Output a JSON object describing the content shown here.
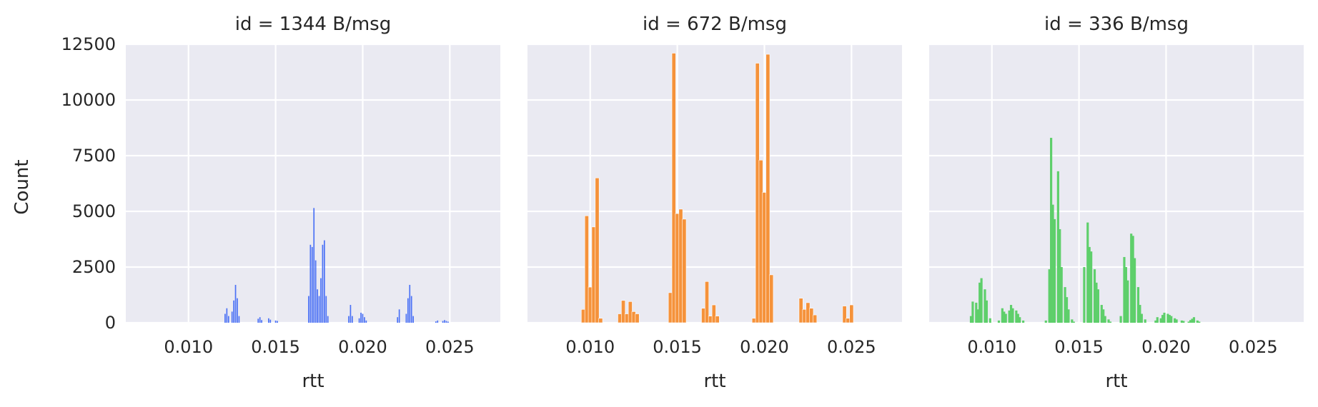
{
  "chart_data": [
    {
      "type": "bar",
      "title": "id = 1344 B/msg",
      "xlabel": "rtt",
      "ylabel": "Count",
      "color": "#4c72f5",
      "xlim": [
        0.0064,
        0.0279
      ],
      "ylim": [
        0,
        12500
      ],
      "xticks": [
        "0.010",
        "0.015",
        "0.020",
        "0.025"
      ],
      "yticks": [
        "0",
        "2500",
        "5000",
        "7500",
        "10000",
        "12500"
      ],
      "bin_width": 7e-05,
      "x": [
        0.0121,
        0.0122,
        0.0123,
        0.0125,
        0.0126,
        0.0127,
        0.0128,
        0.0129,
        0.014,
        0.0141,
        0.0142,
        0.0146,
        0.0147,
        0.015,
        0.0151,
        0.0169,
        0.017,
        0.0171,
        0.0172,
        0.0173,
        0.0174,
        0.0175,
        0.0176,
        0.0177,
        0.0178,
        0.0179,
        0.018,
        0.0192,
        0.0193,
        0.0194,
        0.0198,
        0.0199,
        0.02,
        0.0201,
        0.0202,
        0.022,
        0.0221,
        0.0225,
        0.0226,
        0.0227,
        0.0228,
        0.0229,
        0.0242,
        0.0243,
        0.0246,
        0.0247,
        0.0248,
        0.0249
      ],
      "values": [
        400,
        650,
        300,
        500,
        1000,
        1700,
        1100,
        300,
        180,
        250,
        120,
        200,
        140,
        100,
        80,
        1200,
        3500,
        3400,
        5150,
        2800,
        1500,
        1200,
        2000,
        3500,
        3700,
        1200,
        300,
        300,
        800,
        300,
        200,
        450,
        400,
        250,
        100,
        250,
        600,
        400,
        1100,
        1700,
        1200,
        300,
        60,
        100,
        80,
        120,
        80,
        50
      ]
    },
    {
      "type": "bar",
      "title": "id = 672 B/msg",
      "xlabel": "rtt",
      "ylabel": "",
      "color": "#f5923a",
      "xlim": [
        0.0064,
        0.0279
      ],
      "ylim": [
        0,
        12500
      ],
      "xticks": [
        "0.010",
        "0.015",
        "0.020",
        "0.025"
      ],
      "yticks": [],
      "bin_width": 0.00022,
      "x": [
        0.0096,
        0.0098,
        0.01,
        0.0102,
        0.0104,
        0.0106,
        0.0108,
        0.0117,
        0.0119,
        0.0121,
        0.0123,
        0.0125,
        0.0127,
        0.0146,
        0.0148,
        0.015,
        0.0152,
        0.0154,
        0.0156,
        0.0165,
        0.0167,
        0.0169,
        0.0171,
        0.0173,
        0.0175,
        0.0194,
        0.0196,
        0.0198,
        0.02,
        0.0202,
        0.0204,
        0.0206,
        0.0208,
        0.021,
        0.0215,
        0.0221,
        0.0223,
        0.0225,
        0.0227,
        0.0229,
        0.0246,
        0.0248,
        0.025,
        0.0252
      ],
      "values": [
        600,
        4800,
        1600,
        4300,
        6500,
        200,
        0,
        400,
        1000,
        400,
        950,
        500,
        400,
        1350,
        12100,
        4900,
        5100,
        4650,
        0,
        650,
        1850,
        300,
        800,
        300,
        0,
        200,
        11650,
        7300,
        5850,
        12050,
        2150,
        0,
        0,
        0,
        0,
        1100,
        600,
        900,
        650,
        350,
        750,
        200,
        800,
        0
      ]
    },
    {
      "type": "bar",
      "title": "id = 336 B/msg",
      "xlabel": "rtt",
      "ylabel": "",
      "color": "#5ecf6b",
      "xlim": [
        0.0064,
        0.0279
      ],
      "ylim": [
        0,
        12500
      ],
      "xticks": [
        "0.010",
        "0.015",
        "0.020",
        "0.025"
      ],
      "yticks": [],
      "bin_width": 0.00013,
      "x": [
        0.0088,
        0.0089,
        0.0091,
        0.0092,
        0.0093,
        0.0094,
        0.0096,
        0.0097,
        0.0099,
        0.0104,
        0.0106,
        0.0107,
        0.0108,
        0.011,
        0.0111,
        0.0112,
        0.0114,
        0.0115,
        0.0116,
        0.0118,
        0.0131,
        0.0133,
        0.0134,
        0.0135,
        0.0136,
        0.0138,
        0.0139,
        0.014,
        0.0142,
        0.0143,
        0.0144,
        0.0146,
        0.0147,
        0.0153,
        0.0155,
        0.0156,
        0.0157,
        0.0159,
        0.016,
        0.0161,
        0.0163,
        0.0164,
        0.0165,
        0.0167,
        0.0168,
        0.0174,
        0.0176,
        0.0177,
        0.0178,
        0.018,
        0.0181,
        0.0182,
        0.0184,
        0.0185,
        0.0186,
        0.0188,
        0.0194,
        0.0195,
        0.0197,
        0.0198,
        0.0199,
        0.0201,
        0.0202,
        0.0203,
        0.0205,
        0.0206,
        0.0209,
        0.021,
        0.0213,
        0.0214,
        0.0215,
        0.0216,
        0.0218,
        0.0219
      ],
      "values": [
        300,
        950,
        900,
        600,
        1800,
        2000,
        1500,
        1000,
        200,
        100,
        650,
        500,
        400,
        550,
        800,
        650,
        550,
        400,
        250,
        100,
        100,
        2400,
        8300,
        5300,
        4650,
        6800,
        4200,
        2500,
        1600,
        1150,
        600,
        150,
        50,
        2500,
        4500,
        3400,
        3200,
        2400,
        1800,
        1500,
        800,
        600,
        300,
        150,
        50,
        300,
        2950,
        2500,
        1900,
        4000,
        3900,
        2900,
        1600,
        800,
        400,
        150,
        100,
        250,
        200,
        350,
        450,
        400,
        350,
        300,
        200,
        150,
        100,
        80,
        50,
        120,
        180,
        250,
        100,
        50
      ]
    }
  ]
}
